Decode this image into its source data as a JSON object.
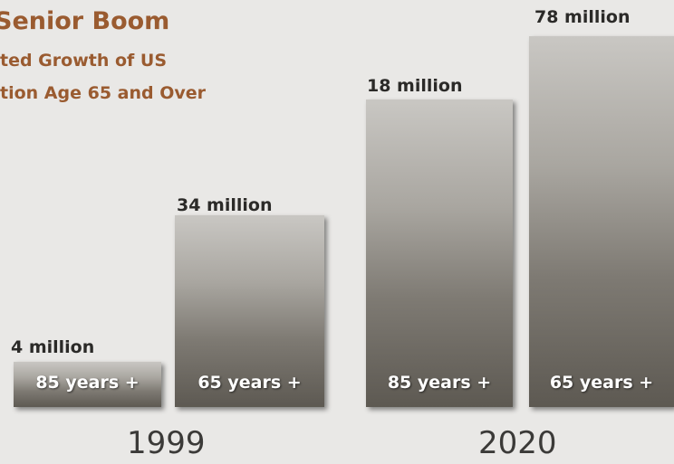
{
  "header": {
    "title": "Senior Boom",
    "subtitle_lines": [
      "ted Growth of US",
      "tion Age 65 and Over"
    ]
  },
  "groups": [
    {
      "year": "1999",
      "bars": [
        {
          "amount": "4 million",
          "label": "85 years +"
        },
        {
          "amount": "34 million",
          "label": "65 years +"
        }
      ]
    },
    {
      "year": "2020",
      "bars": [
        {
          "amount": "18 million",
          "label": "85 years +"
        },
        {
          "amount": "78 million",
          "label": "65 years +"
        }
      ]
    }
  ]
}
